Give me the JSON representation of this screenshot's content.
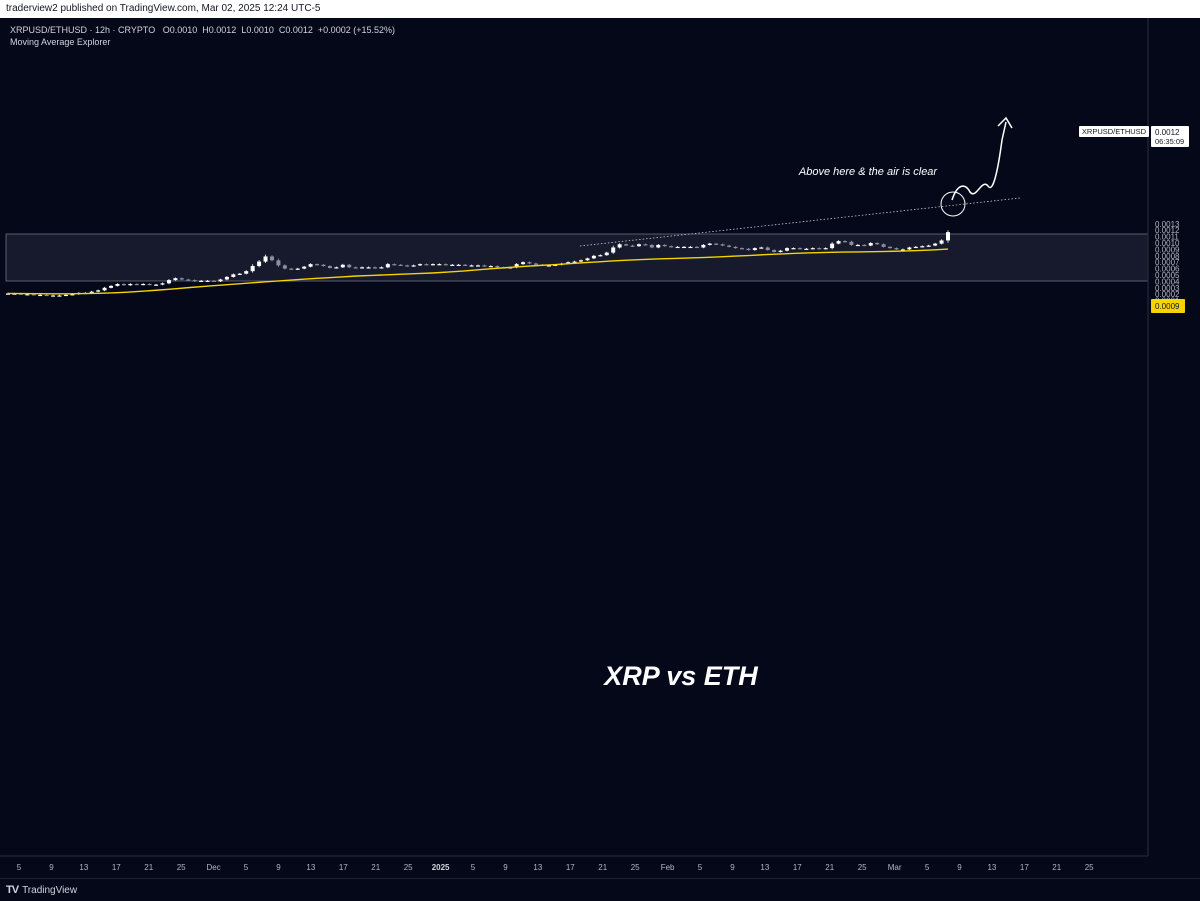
{
  "header": {
    "publisher_text": "traderview2 published on TradingView.com, Mar 02, 2025 12:24 UTC-5"
  },
  "legend": {
    "symbol": "XRPUSD/ETHUSD · 12h · CRYPTO",
    "open": "O0.0010",
    "high": "H0.0012",
    "low": "L0.0010",
    "close": "C0.0012",
    "change": "+0.0002 (+15.52%)",
    "indicator": "Moving Average Explorer"
  },
  "footer": {
    "brand": "TradingView",
    "logo_mark": "TV"
  },
  "colors": {
    "background": "#050819",
    "candle": "#ffffff",
    "ma_line": "#f5d400",
    "resistance_box": "#1a1e30"
  },
  "chart_data": {
    "type": "candlestick",
    "title": "XRP vs ETH",
    "annotation": "Above here & the air is clear",
    "y_ticks": [
      "0.0013",
      "0.0012",
      "0.0011",
      "0.0010",
      "0.0009",
      "0.0008",
      "0.0007",
      "0.0006",
      "0.0005",
      "0.0004",
      "0.0003",
      "0.0002",
      "0.0001"
    ],
    "x_ticks": [
      "5",
      "9",
      "13",
      "17",
      "21",
      "25",
      "Dec",
      "5",
      "9",
      "13",
      "17",
      "21",
      "25",
      "2025",
      "5",
      "9",
      "13",
      "17",
      "21",
      "25",
      "Feb",
      "5",
      "9",
      "13",
      "17",
      "21",
      "25",
      "Mar",
      "5",
      "9",
      "13",
      "17",
      "21",
      "25"
    ],
    "last_price_label": {
      "symbol": "XRPUSD/ETHUSD",
      "price": "0.0012",
      "countdown": "06:35:09"
    },
    "ma_label": "0.0009",
    "resistance_zone": [
      0.00094,
      0.00101
    ],
    "closes": [
      0.00021,
      0.00021,
      0.0002,
      0.0002,
      0.00019,
      0.00019,
      0.00018,
      0.00018,
      0.00018,
      0.00019,
      0.0002,
      0.00022,
      0.00022,
      0.00024,
      0.00026,
      0.0003,
      0.00033,
      0.00036,
      0.00034,
      0.00036,
      0.00035,
      0.00036,
      0.00035,
      0.00035,
      0.00037,
      0.00042,
      0.00045,
      0.00043,
      0.00042,
      0.0004,
      0.00041,
      0.00041,
      0.0004,
      0.00043,
      0.00047,
      0.00051,
      0.00052,
      0.00056,
      0.00064,
      0.00071,
      0.00079,
      0.00073,
      0.00065,
      0.0006,
      0.00059,
      0.0006,
      0.00063,
      0.00067,
      0.00066,
      0.00064,
      0.00061,
      0.00062,
      0.00066,
      0.00062,
      0.00061,
      0.00062,
      0.00062,
      0.00061,
      0.00062,
      0.00067,
      0.00066,
      0.00065,
      0.00064,
      0.00065,
      0.00067,
      0.00066,
      0.00067,
      0.00067,
      0.00066,
      0.00066,
      0.00066,
      0.00065,
      0.00065,
      0.00065,
      0.00064,
      0.00064,
      0.00062,
      0.00061,
      0.00062,
      0.00067,
      0.0007,
      0.00068,
      0.00066,
      0.00065,
      0.00065,
      0.00066,
      0.00068,
      0.0007,
      0.00071,
      0.00073,
      0.00076,
      0.0008,
      0.00081,
      0.00085,
      0.00093,
      0.00098,
      0.00096,
      0.00095,
      0.00098,
      0.00097,
      0.00093,
      0.00097,
      0.00095,
      0.00094,
      0.00094,
      0.00094,
      0.00094,
      0.00093,
      0.00097,
      0.00099,
      0.00098,
      0.00096,
      0.00094,
      0.00092,
      0.00091,
      0.00089,
      0.00092,
      0.00093,
      0.00089,
      0.00086,
      0.00088,
      0.00092,
      0.00092,
      0.00091,
      0.00091,
      0.00092,
      0.00091,
      0.00092,
      0.00099,
      0.00103,
      0.00102,
      0.00097,
      0.00097,
      0.00096,
      0.001,
      0.00098,
      0.00094,
      0.00092,
      0.0009,
      0.0009,
      0.00093,
      0.00094,
      0.00095,
      0.00096,
      0.00099,
      0.00104,
      0.00117
    ],
    "ma": [
      0.000212,
      0.00021,
      0.000208,
      0.000207,
      0.000207,
      0.000209,
      0.000214,
      0.000222,
      0.000233,
      0.000248,
      0.000265,
      0.000285,
      0.000305,
      0.000323,
      0.00034,
      0.000358,
      0.000376,
      0.000393,
      0.00041,
      0.000427,
      0.000442,
      0.000457,
      0.000471,
      0.000484,
      0.000494,
      0.000503,
      0.000512,
      0.000522,
      0.000532,
      0.000545,
      0.000561,
      0.000581,
      0.0006,
      0.000617,
      0.000634,
      0.000648,
      0.000661,
      0.000676,
      0.000692,
      0.000707,
      0.000722,
      0.000733,
      0.000744,
      0.000753,
      0.00076,
      0.000767,
      0.000775,
      0.000784,
      0.000795,
      0.000807,
      0.000818,
      0.000829,
      0.000839,
      0.000847,
      0.000853,
      0.000858,
      0.000861,
      0.000864,
      0.000868,
      0.000874,
      0.000882,
      0.000892,
      0.000905
    ]
  }
}
